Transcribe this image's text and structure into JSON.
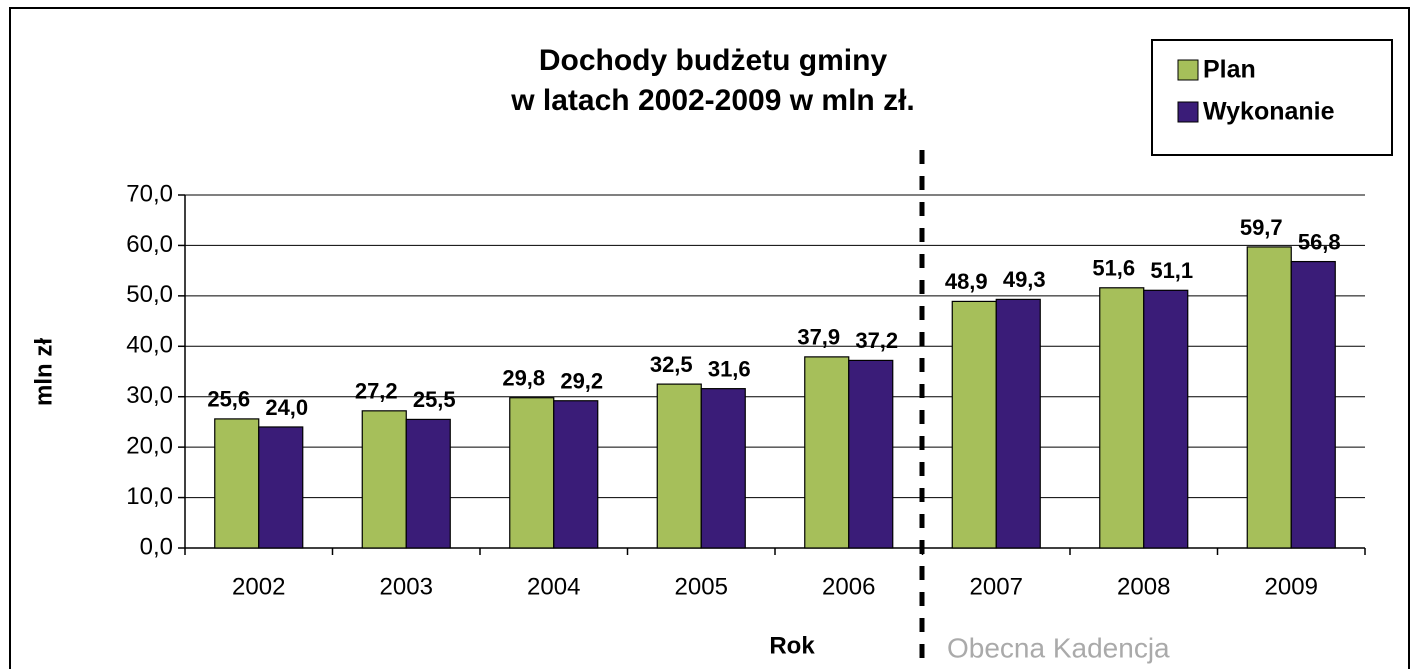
{
  "chart_data": {
    "type": "bar",
    "title": [
      "Dochody budżetu gminy",
      "w latach 2002-2009 w mln zł."
    ],
    "x_label": "Rok",
    "y_label": "mln zł",
    "annotation": "Obecna Kadencja",
    "categories": [
      "2002",
      "2003",
      "2004",
      "2005",
      "2006",
      "2007",
      "2008",
      "2009"
    ],
    "series": [
      {
        "name": "Plan",
        "color": "#a6bf5a",
        "values": [
          25.6,
          27.2,
          29.8,
          32.5,
          37.9,
          48.9,
          51.6,
          59.7
        ],
        "value_labels": [
          "25,6",
          "27,2",
          "29,8",
          "32,5",
          "37,9",
          "48,9",
          "51,6",
          "59,7"
        ]
      },
      {
        "name": "Wykonanie",
        "color": "#3a1c78",
        "values": [
          24.0,
          25.5,
          29.2,
          31.6,
          37.2,
          49.3,
          51.1,
          56.8
        ],
        "value_labels": [
          "24,0",
          "25,5",
          "29,2",
          "31,6",
          "37,2",
          "49,3",
          "51,1",
          "56,8"
        ]
      }
    ],
    "ylim": [
      0,
      70
    ],
    "yticks": [
      {
        "value": 0,
        "label": "0,0"
      },
      {
        "value": 10,
        "label": "10,0"
      },
      {
        "value": 20,
        "label": "20,0"
      },
      {
        "value": 30,
        "label": "30,0"
      },
      {
        "value": 40,
        "label": "40,0"
      },
      {
        "value": 50,
        "label": "50,0"
      },
      {
        "value": 60,
        "label": "60,0"
      },
      {
        "value": 70,
        "label": "70,0"
      }
    ],
    "grid": true,
    "legend": "upper right"
  }
}
